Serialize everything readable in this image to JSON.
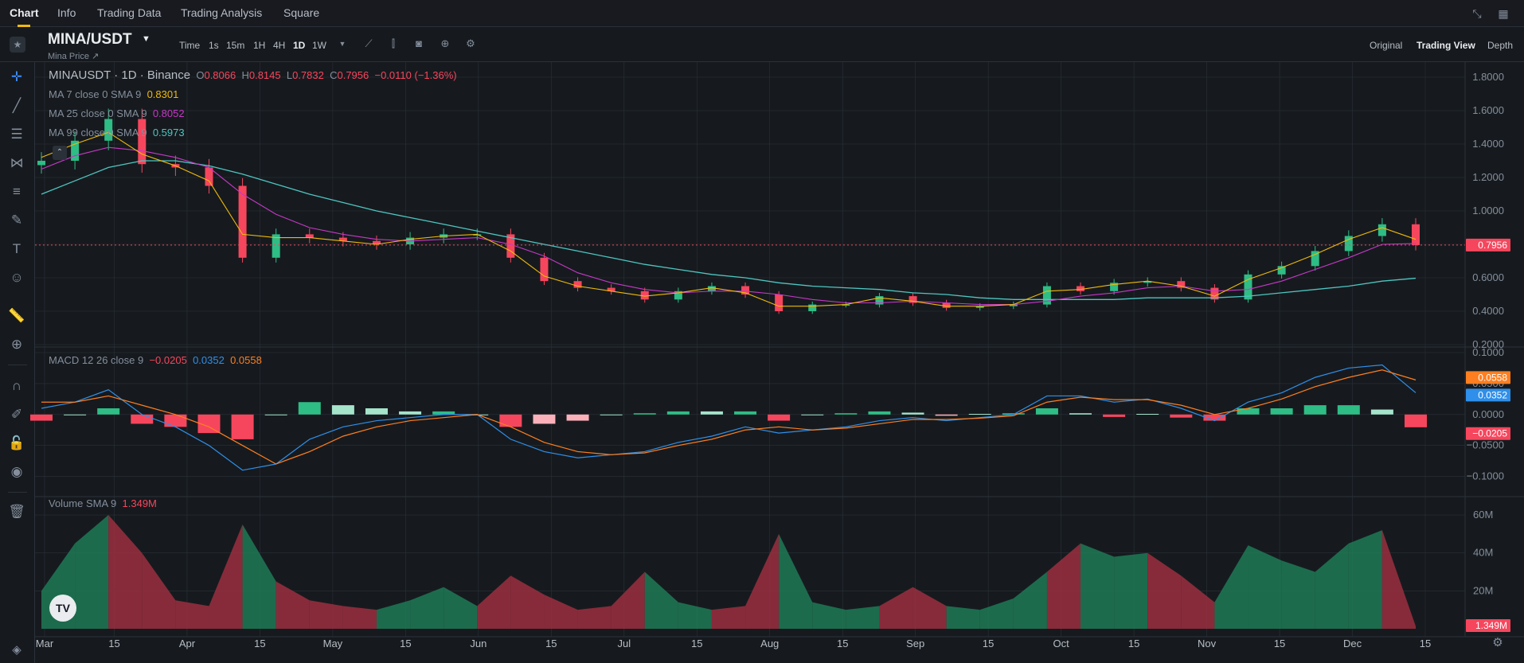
{
  "nav": {
    "tabs": [
      "Chart",
      "Info",
      "Trading Data",
      "Trading Analysis",
      "Square"
    ],
    "active": "Chart"
  },
  "symbol": {
    "name": "MINA/USDT",
    "subtitle": "Mina Price ↗"
  },
  "timeframes": [
    "Time",
    "1s",
    "15m",
    "1H",
    "4H",
    "1D",
    "1W"
  ],
  "active_timeframe": "1D",
  "views": [
    "Original",
    "Trading View",
    "Depth"
  ],
  "active_view": "Trading View",
  "legend": {
    "pair_line": "MINAUSDT · 1D · Binance",
    "o_label": "O",
    "o_val": "0.8066",
    "h_label": "H",
    "h_val": "0.8145",
    "l_label": "L",
    "l_val": "0.7832",
    "c_label": "C",
    "c_val": "0.7956",
    "change": "−0.0110 (−1.36%)",
    "ma7_label": "MA 7 close 0 SMA 9",
    "ma7_val": "0.8301",
    "ma25_label": "MA 25 close 0 SMA 9",
    "ma25_val": "0.8052",
    "ma99_label": "MA 99 close 0 SMA 9",
    "ma99_val": "0.5973",
    "macd_label": "MACD 12 26 close 9",
    "macd_hist": "−0.0205",
    "macd_line": "0.0352",
    "macd_signal": "0.0558",
    "vol_label": "Volume SMA 9",
    "vol_val": "1.349M"
  },
  "colors": {
    "up": "#2ebd85",
    "down": "#f6465d",
    "ma7": "#f0b90b",
    "ma25": "#c738c7",
    "ma99": "#4ec5c1",
    "macd": "#2f8fea",
    "signal": "#ff7e1f",
    "bg": "#161a1e",
    "grid": "#2b3139"
  },
  "price_axis": {
    "ticks": [
      "1.8000",
      "1.6000",
      "1.4000",
      "1.2000",
      "1.0000",
      "0.8000",
      "0.6000",
      "0.4000",
      "0.2000"
    ],
    "current": "0.7956"
  },
  "macd_axis": {
    "ticks": [
      "0.1000",
      "0.0500",
      "0.0000",
      "−0.0500",
      "−0.1000"
    ],
    "signal_badge": "0.0558",
    "macd_badge": "0.0352",
    "hist_badge": "−0.0205"
  },
  "volume_axis": {
    "ticks": [
      "60M",
      "40M",
      "20M"
    ],
    "current": "1.349M"
  },
  "time_axis": [
    "Mar",
    "15",
    "Apr",
    "15",
    "May",
    "15",
    "Jun",
    "15",
    "Jul",
    "15",
    "Aug",
    "15",
    "Sep",
    "15",
    "Oct",
    "15",
    "Nov",
    "15",
    "Dec",
    "15"
  ],
  "chart_data": {
    "type": "line",
    "x_unit": "weekly samples, Mar 1 to Dec 9",
    "x": [
      "Mar 1",
      "Mar 8",
      "Mar 15",
      "Mar 22",
      "Mar 29",
      "Apr 5",
      "Apr 12",
      "Apr 19",
      "Apr 26",
      "May 3",
      "May 10",
      "May 17",
      "May 24",
      "May 31",
      "Jun 7",
      "Jun 14",
      "Jun 21",
      "Jun 28",
      "Jul 5",
      "Jul 12",
      "Jul 19",
      "Jul 26",
      "Aug 2",
      "Aug 9",
      "Aug 16",
      "Aug 23",
      "Aug 30",
      "Sep 6",
      "Sep 13",
      "Sep 20",
      "Sep 27",
      "Oct 4",
      "Oct 11",
      "Oct 18",
      "Oct 25",
      "Nov 1",
      "Nov 8",
      "Nov 15",
      "Nov 22",
      "Nov 29",
      "Dec 6",
      "Dec 9"
    ],
    "series": [
      {
        "name": "close",
        "values": [
          1.3,
          1.42,
          1.55,
          1.28,
          1.26,
          1.15,
          0.72,
          0.86,
          0.84,
          0.82,
          0.8,
          0.84,
          0.86,
          0.86,
          0.72,
          0.58,
          0.54,
          0.52,
          0.47,
          0.52,
          0.55,
          0.5,
          0.4,
          0.44,
          0.44,
          0.49,
          0.45,
          0.42,
          0.43,
          0.44,
          0.55,
          0.52,
          0.57,
          0.58,
          0.54,
          0.47,
          0.62,
          0.67,
          0.76,
          0.85,
          0.92,
          0.7956
        ]
      },
      {
        "name": "MA 7",
        "values": [
          1.32,
          1.4,
          1.47,
          1.34,
          1.27,
          1.18,
          0.86,
          0.84,
          0.84,
          0.82,
          0.8,
          0.83,
          0.85,
          0.86,
          0.76,
          0.61,
          0.55,
          0.52,
          0.49,
          0.51,
          0.54,
          0.51,
          0.43,
          0.43,
          0.44,
          0.48,
          0.46,
          0.43,
          0.43,
          0.44,
          0.52,
          0.53,
          0.56,
          0.58,
          0.55,
          0.49,
          0.59,
          0.66,
          0.74,
          0.83,
          0.9,
          0.8301
        ]
      },
      {
        "name": "MA 25",
        "values": [
          1.25,
          1.33,
          1.38,
          1.36,
          1.32,
          1.26,
          1.1,
          0.98,
          0.9,
          0.86,
          0.83,
          0.82,
          0.83,
          0.84,
          0.8,
          0.73,
          0.63,
          0.57,
          0.53,
          0.51,
          0.52,
          0.52,
          0.5,
          0.47,
          0.45,
          0.45,
          0.46,
          0.45,
          0.44,
          0.44,
          0.46,
          0.49,
          0.51,
          0.54,
          0.55,
          0.52,
          0.53,
          0.58,
          0.65,
          0.72,
          0.8,
          0.8052
        ]
      },
      {
        "name": "MA 99",
        "values": [
          1.1,
          1.18,
          1.26,
          1.3,
          1.3,
          1.27,
          1.22,
          1.16,
          1.1,
          1.05,
          1.0,
          0.96,
          0.92,
          0.88,
          0.84,
          0.8,
          0.76,
          0.72,
          0.68,
          0.65,
          0.62,
          0.6,
          0.57,
          0.55,
          0.54,
          0.53,
          0.51,
          0.5,
          0.48,
          0.47,
          0.47,
          0.47,
          0.47,
          0.48,
          0.48,
          0.48,
          0.49,
          0.51,
          0.53,
          0.55,
          0.58,
          0.5973
        ]
      }
    ],
    "ylim": [
      0.2,
      1.8
    ],
    "macd": {
      "macd": [
        0.01,
        0.02,
        0.04,
        0.0,
        -0.02,
        -0.05,
        -0.09,
        -0.08,
        -0.04,
        -0.02,
        -0.01,
        -0.005,
        0.0,
        0.0,
        -0.04,
        -0.06,
        -0.07,
        -0.065,
        -0.06,
        -0.045,
        -0.035,
        -0.02,
        -0.03,
        -0.025,
        -0.02,
        -0.01,
        -0.005,
        -0.01,
        -0.005,
        0.0,
        0.03,
        0.03,
        0.02,
        0.025,
        0.01,
        -0.01,
        0.02,
        0.035,
        0.06,
        0.075,
        0.08,
        0.0352
      ],
      "signal": [
        0.02,
        0.02,
        0.03,
        0.015,
        0.0,
        -0.02,
        -0.05,
        -0.08,
        -0.06,
        -0.035,
        -0.02,
        -0.01,
        -0.005,
        0.0,
        -0.02,
        -0.045,
        -0.06,
        -0.065,
        -0.062,
        -0.05,
        -0.04,
        -0.025,
        -0.02,
        -0.025,
        -0.022,
        -0.015,
        -0.008,
        -0.008,
        -0.006,
        -0.002,
        0.02,
        0.028,
        0.024,
        0.024,
        0.015,
        0.0,
        0.01,
        0.025,
        0.045,
        0.06,
        0.072,
        0.0558
      ],
      "ylim": [
        -0.125,
        0.1
      ]
    },
    "volume": {
      "values": [
        20,
        45,
        60,
        40,
        15,
        12,
        55,
        25,
        15,
        12,
        10,
        15,
        22,
        12,
        28,
        18,
        10,
        12,
        30,
        14,
        10,
        12,
        50,
        14,
        10,
        12,
        22,
        12,
        10,
        16,
        30,
        45,
        38,
        40,
        28,
        14,
        44,
        36,
        30,
        45,
        52,
        1.349
      ],
      "ylim": [
        0,
        68
      ]
    }
  }
}
